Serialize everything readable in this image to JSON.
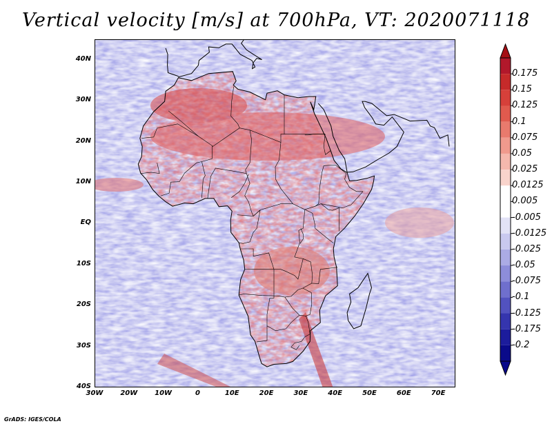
{
  "title": "Vertical velocity [m/s] at 700hPa, VT: 2020071118",
  "footer": "GrADS: IGES/COLA",
  "axes": {
    "lat_labels": [
      "40N",
      "30N",
      "20N",
      "10N",
      "EQ",
      "10S",
      "20S",
      "30S",
      "40S"
    ],
    "lon_labels": [
      "30W",
      "20W",
      "10W",
      "0",
      "10E",
      "20E",
      "30E",
      "40E",
      "50E",
      "60E",
      "70E"
    ]
  },
  "colorbar": {
    "levels": [
      "0.175",
      "0.15",
      "0.125",
      "0.1",
      "0.075",
      "0.05",
      "0.025",
      "0.0125",
      "0.005",
      "-0.005",
      "-0.0125",
      "-0.025",
      "-0.05",
      "-0.075",
      "-0.1",
      "-0.125",
      "-0.175",
      "-0.2"
    ],
    "colors": [
      "#b2182b",
      "#c62a2a",
      "#d6403a",
      "#e05a4e",
      "#e97a6d",
      "#f09a8d",
      "#f5b8ad",
      "#f9d4cc",
      "#ffffff",
      "#ffffff",
      "#e2e2f6",
      "#c9c9ef",
      "#ababe5",
      "#8d8dda",
      "#6f6fcd",
      "#5252bf",
      "#3535ae",
      "#1c1c9c",
      "#0a0a8a"
    ],
    "top_triangle_color": "#a50f15",
    "bottom_triangle_color": "#08088a"
  },
  "map": {
    "background_color": "#d9d9f3",
    "region": "Africa",
    "lon_range": [
      -30,
      75
    ],
    "lat_range": [
      -40,
      45
    ]
  }
}
